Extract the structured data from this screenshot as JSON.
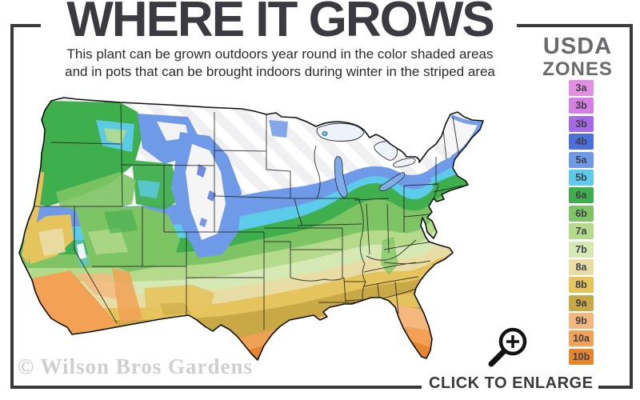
{
  "header": {
    "title": "WHERE IT GROWS",
    "subtitle_line1": "This plant can be grown outdoors year round in the color shaded areas",
    "subtitle_line2": "and in pots that can be brought indoors during winter in the striped area"
  },
  "legend": {
    "title_line1": "USDA",
    "title_line2": "ZONES",
    "zones": [
      {
        "label": "3a",
        "color": "#e18fe0"
      },
      {
        "label": "3b",
        "color": "#d57fe2"
      },
      {
        "label": "3b",
        "color": "#a869e8"
      },
      {
        "label": "4b",
        "color": "#4d6fdb"
      },
      {
        "label": "5a",
        "color": "#6f9ae8"
      },
      {
        "label": "5b",
        "color": "#5cccea"
      },
      {
        "label": "6a",
        "color": "#3fae4d"
      },
      {
        "label": "6b",
        "color": "#7ec464"
      },
      {
        "label": "7a",
        "color": "#b5da8c"
      },
      {
        "label": "7b",
        "color": "#d6e9b5"
      },
      {
        "label": "8a",
        "color": "#e9dda6"
      },
      {
        "label": "8b",
        "color": "#e5c45e"
      },
      {
        "label": "9a",
        "color": "#c9a846"
      },
      {
        "label": "9b",
        "color": "#f4b87f"
      },
      {
        "label": "10a",
        "color": "#f2a155"
      },
      {
        "label": "10b",
        "color": "#e8862e"
      }
    ]
  },
  "watermark": {
    "text": "© Wilson Bros Gardens"
  },
  "cta": {
    "label": "CLICK TO ENLARGE"
  }
}
